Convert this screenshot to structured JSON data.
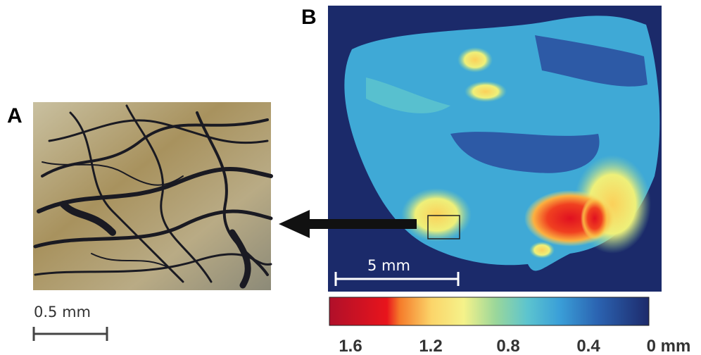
{
  "panels": [
    {
      "label": "A",
      "scale_bar": "0.5 mm"
    },
    {
      "label": "B",
      "scale_bar": "5 mm"
    }
  ],
  "colorbar": {
    "ticks": [
      "1.6",
      "1.2",
      "0.8",
      "0.4",
      "0 mm"
    ]
  }
}
